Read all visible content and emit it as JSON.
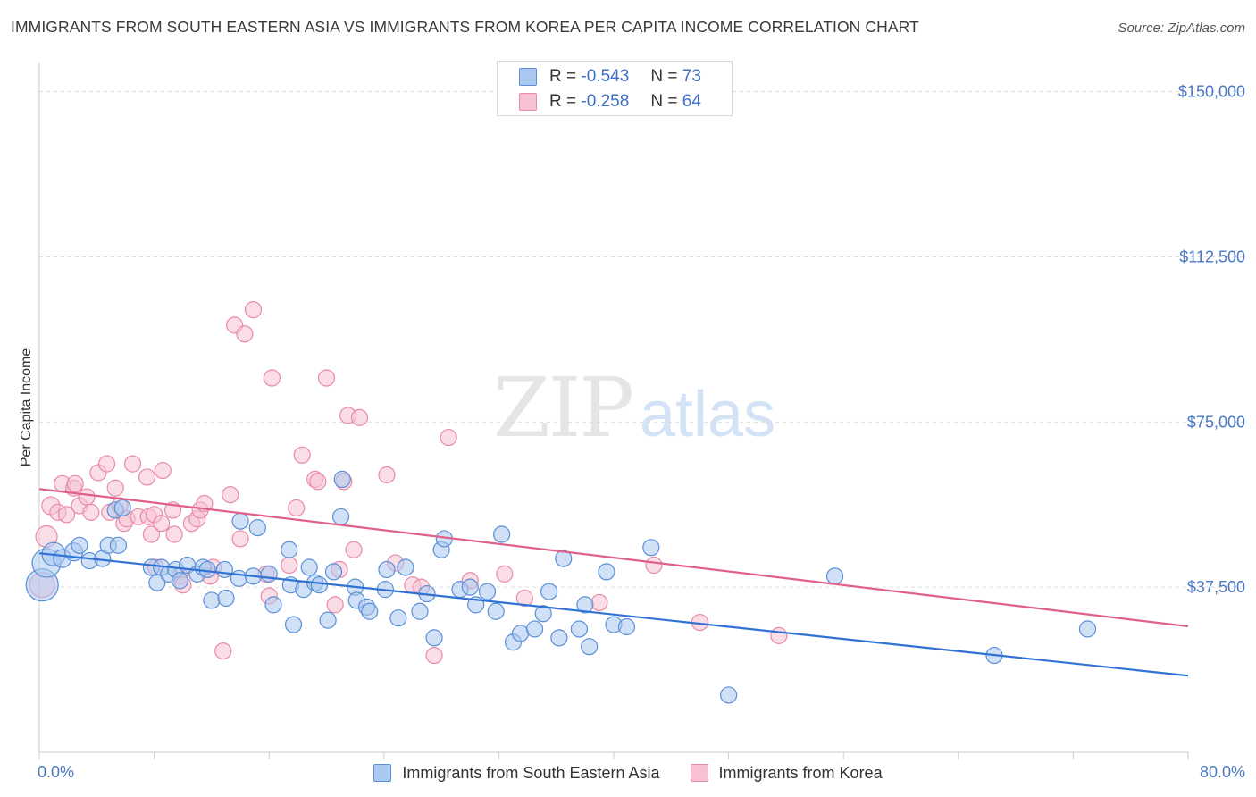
{
  "header": {
    "title": "IMMIGRANTS FROM SOUTH EASTERN ASIA VS IMMIGRANTS FROM KOREA PER CAPITA INCOME CORRELATION CHART",
    "source": "Source: ZipAtlas.com"
  },
  "watermark": {
    "zip": "ZIP",
    "atlas": "atlas"
  },
  "legend": {
    "r_label": "R =",
    "n_label": "N =",
    "series": [
      {
        "r": "-0.543",
        "n": "73"
      },
      {
        "r": "-0.258",
        "n": "64"
      }
    ]
  },
  "colors": {
    "blue_fill": "#aac8f0",
    "blue_stroke": "#5b8fd6",
    "blue_line": "#2f72d4",
    "pink_fill": "#f7c1d2",
    "pink_stroke": "#e88aa8",
    "pink_line": "#e0608a",
    "grid": "#dddddd",
    "axis_text": "#4a78c2"
  },
  "chart_data": {
    "type": "scatter",
    "title": "IMMIGRANTS FROM SOUTH EASTERN ASIA VS IMMIGRANTS FROM KOREA PER CAPITA INCOME CORRELATION CHART",
    "xlabel": "",
    "ylabel": "Per Capita Income",
    "xlim": [
      0,
      80
    ],
    "ylim": [
      0,
      155000
    ],
    "x_tick_labels": [
      "0.0%",
      "80.0%"
    ],
    "y_ticks": [
      {
        "value": 37500,
        "label": "$37,500"
      },
      {
        "value": 75000,
        "label": "$75,000"
      },
      {
        "value": 112500,
        "label": "$112,500"
      },
      {
        "value": 150000,
        "label": "$150,000"
      }
    ],
    "series": [
      {
        "name": "Immigrants from South Eastern Asia",
        "color": "blue",
        "trend": {
          "x0": 0,
          "y0": 45200,
          "x1": 80,
          "y1": 17400
        },
        "points": [
          [
            0.2,
            38000,
            18
          ],
          [
            0.5,
            43000,
            16
          ],
          [
            1.0,
            45000,
            13
          ],
          [
            1.6,
            44000,
            10
          ],
          [
            2.4,
            45500,
            10
          ],
          [
            2.8,
            47000,
            9
          ],
          [
            3.5,
            43500,
            9
          ],
          [
            4.4,
            44000,
            9
          ],
          [
            4.8,
            47000,
            9
          ],
          [
            5.5,
            47000,
            9
          ],
          [
            5.3,
            55000,
            9
          ],
          [
            5.8,
            55500,
            9
          ],
          [
            7.8,
            42000,
            9
          ],
          [
            8.2,
            38500,
            9
          ],
          [
            8.5,
            42000,
            9
          ],
          [
            9.0,
            40500,
            9
          ],
          [
            9.5,
            41500,
            9
          ],
          [
            9.8,
            39000,
            9
          ],
          [
            10.3,
            42500,
            9
          ],
          [
            11.0,
            40500,
            9
          ],
          [
            11.4,
            42000,
            9
          ],
          [
            11.7,
            41500,
            9
          ],
          [
            12.0,
            34500,
            9
          ],
          [
            12.9,
            41500,
            9
          ],
          [
            13.0,
            35000,
            9
          ],
          [
            13.9,
            39500,
            9
          ],
          [
            14.0,
            52500,
            9
          ],
          [
            14.9,
            40000,
            9
          ],
          [
            15.2,
            51000,
            9
          ],
          [
            16.0,
            40500,
            9
          ],
          [
            16.3,
            33500,
            9
          ],
          [
            17.4,
            46000,
            9
          ],
          [
            17.5,
            38000,
            9
          ],
          [
            17.7,
            29000,
            9
          ],
          [
            18.4,
            37000,
            9
          ],
          [
            18.8,
            42000,
            9
          ],
          [
            19.2,
            38500,
            9
          ],
          [
            19.5,
            38000,
            9
          ],
          [
            20.1,
            30000,
            9
          ],
          [
            20.5,
            41000,
            9
          ],
          [
            21.0,
            53500,
            9
          ],
          [
            21.1,
            62000,
            9
          ],
          [
            22.0,
            37500,
            9
          ],
          [
            22.1,
            34500,
            9
          ],
          [
            22.8,
            33000,
            9
          ],
          [
            23.0,
            32000,
            9
          ],
          [
            24.1,
            37000,
            9
          ],
          [
            24.2,
            41500,
            9
          ],
          [
            25.0,
            30500,
            9
          ],
          [
            25.5,
            42000,
            9
          ],
          [
            26.5,
            32000,
            9
          ],
          [
            27.0,
            36000,
            9
          ],
          [
            27.5,
            26000,
            9
          ],
          [
            28.0,
            46000,
            9
          ],
          [
            28.2,
            48500,
            9
          ],
          [
            29.3,
            37000,
            9
          ],
          [
            30.0,
            37500,
            9
          ],
          [
            30.4,
            33500,
            9
          ],
          [
            31.2,
            36500,
            9
          ],
          [
            31.8,
            32000,
            9
          ],
          [
            32.2,
            49500,
            9
          ],
          [
            33.0,
            25000,
            9
          ],
          [
            33.5,
            27000,
            9
          ],
          [
            34.5,
            28000,
            9
          ],
          [
            35.1,
            31500,
            9
          ],
          [
            35.5,
            36500,
            9
          ],
          [
            36.2,
            26000,
            9
          ],
          [
            36.5,
            44000,
            9
          ],
          [
            37.6,
            28000,
            9
          ],
          [
            38.0,
            33500,
            9
          ],
          [
            38.3,
            24000,
            9
          ],
          [
            39.5,
            41000,
            9
          ],
          [
            40.0,
            29000,
            9
          ],
          [
            40.9,
            28500,
            9
          ],
          [
            42.6,
            46500,
            9
          ],
          [
            48.0,
            13000,
            9
          ],
          [
            55.4,
            40000,
            9
          ],
          [
            66.5,
            22000,
            9
          ],
          [
            73.0,
            28000,
            9
          ]
        ]
      },
      {
        "name": "Immigrants from Korea",
        "color": "pink",
        "trend": {
          "x0": 0,
          "y0": 59800,
          "x1": 80,
          "y1": 28600
        },
        "points": [
          [
            0.2,
            38000,
            14
          ],
          [
            0.5,
            49000,
            12
          ],
          [
            0.8,
            56000,
            10
          ],
          [
            1.3,
            54500,
            9
          ],
          [
            1.6,
            61000,
            9
          ],
          [
            1.9,
            54000,
            9
          ],
          [
            2.4,
            60000,
            9
          ],
          [
            2.5,
            61000,
            9
          ],
          [
            2.8,
            56000,
            9
          ],
          [
            3.3,
            58000,
            9
          ],
          [
            3.6,
            54500,
            9
          ],
          [
            4.1,
            63500,
            9
          ],
          [
            4.7,
            65500,
            9
          ],
          [
            4.9,
            54500,
            9
          ],
          [
            5.3,
            60000,
            9
          ],
          [
            5.6,
            56000,
            9
          ],
          [
            5.9,
            52000,
            9
          ],
          [
            6.1,
            53000,
            9
          ],
          [
            6.5,
            65500,
            9
          ],
          [
            6.9,
            53500,
            9
          ],
          [
            7.5,
            62500,
            9
          ],
          [
            7.6,
            53500,
            9
          ],
          [
            7.8,
            49500,
            9
          ],
          [
            8.0,
            54000,
            9
          ],
          [
            8.1,
            42000,
            9
          ],
          [
            8.5,
            52000,
            9
          ],
          [
            8.6,
            64000,
            9
          ],
          [
            9.3,
            55000,
            9
          ],
          [
            9.4,
            49500,
            9
          ],
          [
            9.8,
            40000,
            9
          ],
          [
            10.0,
            38000,
            9
          ],
          [
            10.6,
            52000,
            9
          ],
          [
            11.0,
            53000,
            9
          ],
          [
            11.2,
            55000,
            9
          ],
          [
            11.5,
            56500,
            9
          ],
          [
            11.9,
            40000,
            9
          ],
          [
            12.1,
            42000,
            9
          ],
          [
            12.8,
            23000,
            9
          ],
          [
            13.3,
            58500,
            9
          ],
          [
            13.6,
            97000,
            9
          ],
          [
            14.0,
            48500,
            9
          ],
          [
            14.3,
            95000,
            9
          ],
          [
            14.9,
            100500,
            9
          ],
          [
            15.8,
            40500,
            9
          ],
          [
            16.0,
            35500,
            9
          ],
          [
            16.2,
            85000,
            9
          ],
          [
            17.4,
            42500,
            9
          ],
          [
            17.9,
            55500,
            9
          ],
          [
            18.3,
            67500,
            9
          ],
          [
            19.2,
            62000,
            9
          ],
          [
            19.4,
            61500,
            9
          ],
          [
            20.0,
            85000,
            9
          ],
          [
            20.6,
            33500,
            9
          ],
          [
            20.9,
            41500,
            9
          ],
          [
            21.2,
            61500,
            9
          ],
          [
            21.5,
            76500,
            9
          ],
          [
            21.9,
            46000,
            9
          ],
          [
            22.3,
            76000,
            9
          ],
          [
            24.2,
            63000,
            9
          ],
          [
            24.8,
            43000,
            9
          ],
          [
            26.0,
            38000,
            9
          ],
          [
            26.6,
            37500,
            9
          ],
          [
            27.5,
            22000,
            9
          ],
          [
            28.5,
            71500,
            9
          ],
          [
            30.0,
            39000,
            9
          ],
          [
            32.4,
            40500,
            9
          ],
          [
            33.8,
            35000,
            9
          ],
          [
            39.0,
            34000,
            9
          ],
          [
            42.8,
            42500,
            9
          ],
          [
            46.0,
            29500,
            9
          ],
          [
            51.5,
            26500,
            9
          ]
        ]
      }
    ]
  }
}
